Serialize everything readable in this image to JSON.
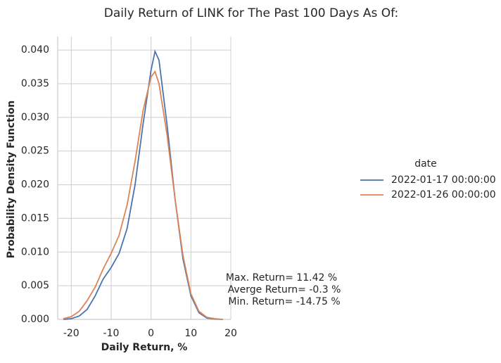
{
  "chart_data": {
    "type": "line",
    "title": "Daily Return of LINK for The Past 100 Days As Of:",
    "xlabel": "Daily Return, %",
    "ylabel": "Probability Density Function",
    "x": [
      -22,
      -20,
      -18,
      -16,
      -14,
      -12,
      -10,
      -8,
      -6,
      -4,
      -2,
      0,
      1,
      2,
      4,
      6,
      8,
      10,
      12,
      14,
      16,
      18
    ],
    "series": [
      {
        "name": "2022-01-17 00:00:00",
        "color": "#4c72b0",
        "values": [
          0,
          0.0001,
          0.0005,
          0.0015,
          0.0035,
          0.006,
          0.0077,
          0.0098,
          0.0135,
          0.02,
          0.029,
          0.037,
          0.0398,
          0.0385,
          0.029,
          0.018,
          0.009,
          0.0035,
          0.001,
          0.0002,
          5e-05,
          0
        ]
      },
      {
        "name": "2022-01-26 00:00:00",
        "color": "#dd8452",
        "values": [
          0.0001,
          0.0004,
          0.0012,
          0.0028,
          0.0048,
          0.0075,
          0.0098,
          0.0125,
          0.017,
          0.0235,
          0.031,
          0.036,
          0.0368,
          0.035,
          0.0275,
          0.018,
          0.0095,
          0.0038,
          0.0012,
          0.0003,
          0.0001,
          0
        ]
      }
    ],
    "legend_title": "date",
    "annotations": [
      "Max. Return= 11.42 %",
      "Averge Return= -0.3 %",
      "Min. Return= -14.75 %"
    ],
    "xlim": [
      -23.4,
      20
    ],
    "ylim": [
      0,
      0.042
    ],
    "xticks": [
      -20,
      -10,
      0,
      10,
      20
    ],
    "yticks": [
      {
        "value": 0,
        "label": "0.000"
      },
      {
        "value": 0.005,
        "label": "0.005"
      },
      {
        "value": 0.01,
        "label": "0.010"
      },
      {
        "value": 0.015,
        "label": "0.015"
      },
      {
        "value": 0.02,
        "label": "0.020"
      },
      {
        "value": 0.025,
        "label": "0.025"
      },
      {
        "value": 0.03,
        "label": "0.030"
      },
      {
        "value": 0.035,
        "label": "0.035"
      },
      {
        "value": 0.04,
        "label": "0.040"
      }
    ],
    "grid": true
  }
}
